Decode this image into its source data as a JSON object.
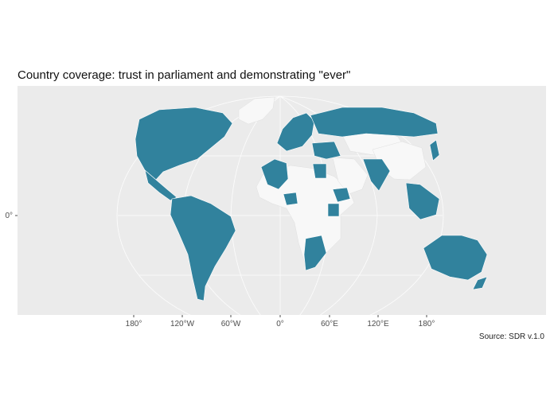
{
  "title": "Country coverage: trust in parliament and demonstrating \"ever\"",
  "caption": "Source: SDR v.1.0",
  "axis": {
    "y_ticks": [
      {
        "label": "0°",
        "lat": 0
      }
    ],
    "x_ticks": [
      {
        "label": "180°",
        "lon": -180
      },
      {
        "label": "120°W",
        "lon": -120
      },
      {
        "label": "60°W",
        "lon": -60
      },
      {
        "label": "0°",
        "lon": 0
      },
      {
        "label": "60°E",
        "lon": 60
      },
      {
        "label": "120°E",
        "lon": 120
      },
      {
        "label": "180°",
        "lon": 180
      }
    ]
  },
  "colors": {
    "covered": "#31829d",
    "not_covered": "#f8f8f8",
    "panel_background": "#ebebeb",
    "grid": "#ffffff"
  },
  "legend": {
    "covered_regions": [
      "North America",
      "Central America",
      "South America",
      "Europe",
      "Russia",
      "North Africa (west)",
      "Egypt",
      "Nigeria",
      "Ethiopia",
      "Kenya",
      "Southern Africa",
      "Turkey & Middle East",
      "India",
      "Southeast Asia",
      "Japan",
      "Australia",
      "New Zealand"
    ],
    "uncovered_regions": [
      "Greenland",
      "Central & East Africa",
      "Arabian Peninsula",
      "Central Asia",
      "China"
    ]
  }
}
